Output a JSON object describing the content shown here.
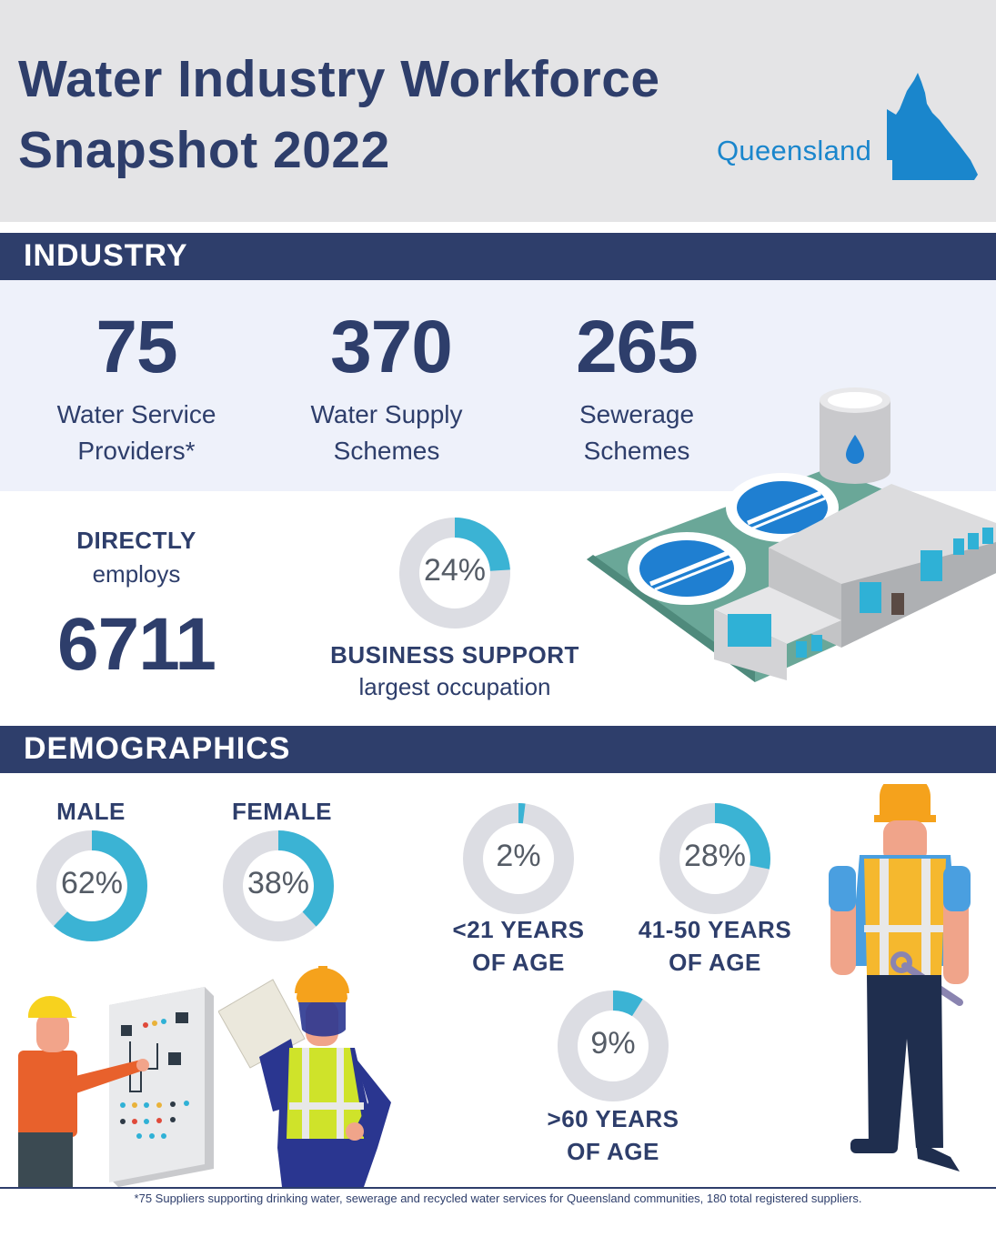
{
  "header": {
    "title_line1": "Water Industry Workforce",
    "title_line2": "Snapshot 2022",
    "region": "Queensland"
  },
  "industry": {
    "heading": "INDUSTRY",
    "stats": [
      {
        "value": "75",
        "label_line1": "Water Service",
        "label_line2": "Providers*"
      },
      {
        "value": "370",
        "label_line1": "Water Supply",
        "label_line2": "Schemes"
      },
      {
        "value": "265",
        "label_line1": "Sewerage",
        "label_line2": "Schemes"
      }
    ],
    "directly": "DIRECTLY",
    "employs": "employs",
    "employees": "6711",
    "occupation_percent": 24,
    "occupation_percent_label": "24%",
    "occupation_name": "BUSINESS SUPPORT",
    "occupation_caption": "largest occupation"
  },
  "demographics": {
    "heading": "DEMOGRAPHICS",
    "gender": [
      {
        "label": "MALE",
        "percent": 62,
        "percent_label": "62%"
      },
      {
        "label": "FEMALE",
        "percent": 38,
        "percent_label": "38%"
      }
    ],
    "age": [
      {
        "percent": 2,
        "percent_label": "2%",
        "line1": "<21 YEARS",
        "line2": "OF AGE"
      },
      {
        "percent": 28,
        "percent_label": "28%",
        "line1": "41-50 YEARS",
        "line2": "OF AGE"
      },
      {
        "percent": 9,
        "percent_label": "9%",
        "line1": ">60 YEARS",
        "line2": "OF AGE"
      }
    ]
  },
  "footnote": "*75 Suppliers supporting drinking water, sewerage and recycled water services for Queensland communities, 180 total registered suppliers.",
  "colors": {
    "navy": "#2e3e6b",
    "accent": "#3bb3d4",
    "track": "#dcdde3",
    "region_blue": "#1a86cc"
  }
}
